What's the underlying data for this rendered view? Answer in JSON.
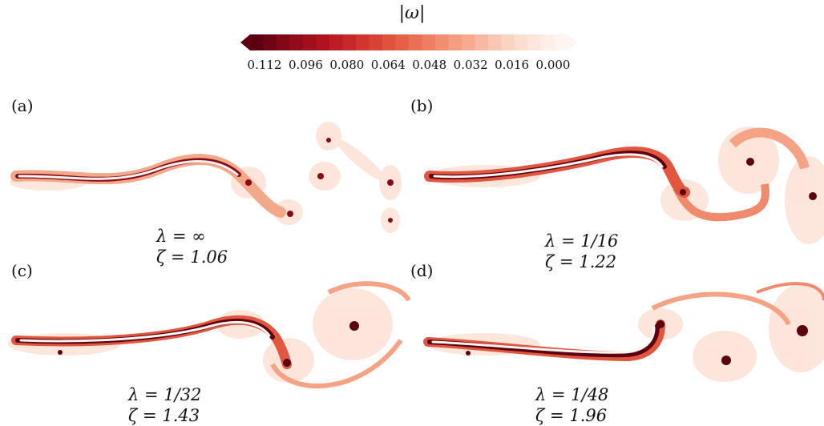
{
  "colorbar": {
    "title": "|ω|",
    "ticks": [
      "0.112",
      "0.096",
      "0.080",
      "0.064",
      "0.048",
      "0.032",
      "0.016",
      "0.000"
    ],
    "colors": [
      "#5c0011",
      "#8a0a19",
      "#b3121f",
      "#d0302c",
      "#e2553f",
      "#ee7a5e",
      "#f5a285",
      "#f9c6b2",
      "#fde3d8",
      "#fff5f0"
    ]
  },
  "panels": [
    {
      "label": "(a)",
      "lambda": "λ = ∞",
      "zeta": "ζ = 1.06"
    },
    {
      "label": "(b)",
      "lambda": "λ = 1/16",
      "zeta": "ζ = 1.22"
    },
    {
      "label": "(c)",
      "lambda": "λ = 1/32",
      "zeta": "ζ = 1.43"
    },
    {
      "label": "(d)",
      "lambda": "λ = 1/48",
      "zeta": "ζ = 1.96"
    }
  ]
}
